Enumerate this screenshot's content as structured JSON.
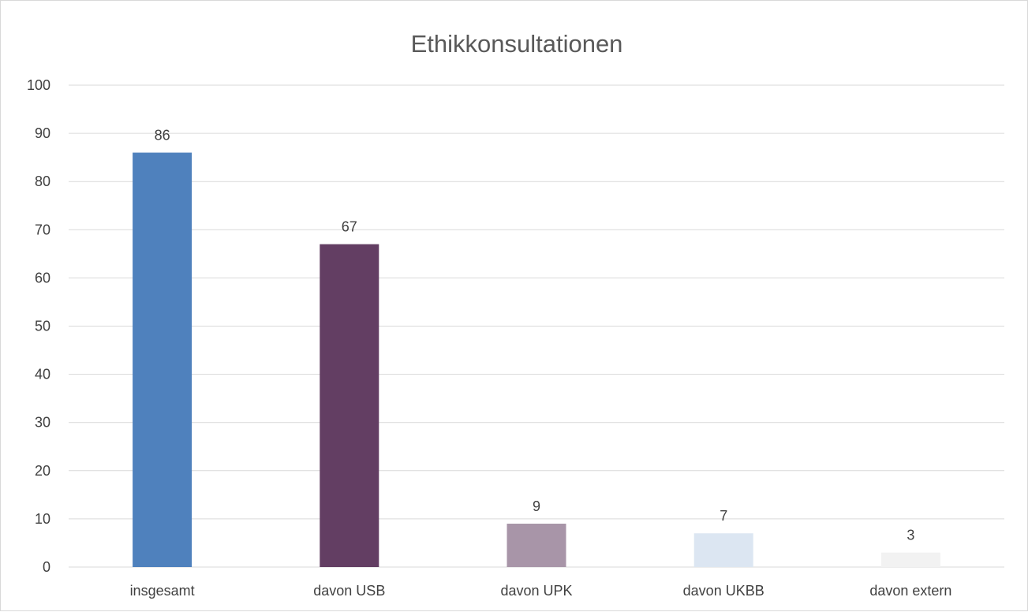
{
  "chart_data": {
    "type": "bar",
    "title": "Ethikkonsultationen",
    "xlabel": "",
    "ylabel": "",
    "categories": [
      "insgesamt",
      "davon USB",
      "davon UPK",
      "davon UKBB",
      "davon extern"
    ],
    "values": [
      86,
      67,
      9,
      7,
      3
    ],
    "data_labels": [
      "86",
      "67",
      "9",
      "7",
      "3"
    ],
    "bar_colors": [
      "#4f81bd",
      "#633e63",
      "#a895a8",
      "#dce6f2",
      "#f2f2f2"
    ],
    "ylim": [
      0,
      100
    ],
    "yticks": [
      0,
      10,
      20,
      30,
      40,
      50,
      60,
      70,
      80,
      90,
      100
    ],
    "ytick_labels": [
      "0",
      "10",
      "20",
      "30",
      "40",
      "50",
      "60",
      "70",
      "80",
      "90",
      "100"
    ],
    "grid": true,
    "gridline_color": "#d9d9d9",
    "legend": false
  }
}
